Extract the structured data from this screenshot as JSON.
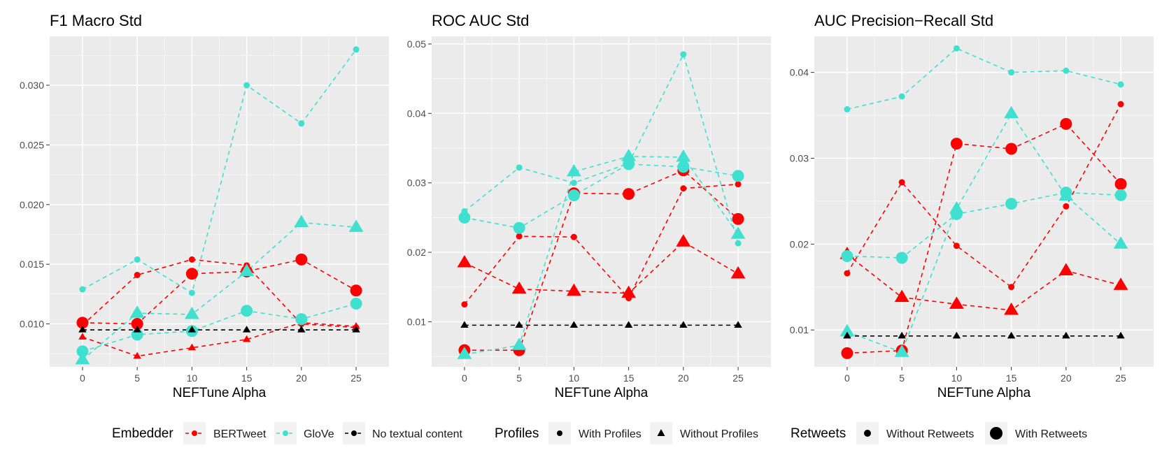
{
  "colors": {
    "panel_bg": "#EBEBEB",
    "grid": "#FFFFFF",
    "axis_text": "#4D4D4D",
    "text": "#000000",
    "bertweet": "#FF0000",
    "glove": "#40E0D0",
    "no_text": "#000000",
    "legend_key_bg": "#F2F2F2"
  },
  "chart_data": [
    {
      "type": "line",
      "title": "F1 Macro Std",
      "xlabel": "NEFTune Alpha",
      "ylabel": "",
      "x": [
        0,
        5,
        10,
        15,
        20,
        25
      ],
      "xlim": [
        -3,
        28
      ],
      "ylim": [
        0.0064,
        0.0341
      ],
      "yticks": [
        0.01,
        0.015,
        0.02,
        0.025,
        0.03
      ],
      "ytick_labels": [
        "0.010",
        "0.015",
        "0.020",
        "0.025",
        "0.030"
      ],
      "series": [
        {
          "name": "BERTweet, With Profiles, Without Retweets",
          "embedder": "BERTweet",
          "profiles": "With Profiles",
          "retweets": "Without Retweets",
          "values": [
            0.0099,
            0.0141,
            0.0154,
            0.0149,
            0.01,
            0.0097
          ]
        },
        {
          "name": "BERTweet, With Profiles, With Retweets",
          "embedder": "BERTweet",
          "profiles": "With Profiles",
          "retweets": "With Retweets",
          "values": [
            0.0101,
            0.01,
            0.0142,
            0.0144,
            0.0154,
            0.0128
          ]
        },
        {
          "name": "BERTweet, Without Profiles, Without Retweets",
          "embedder": "BERTweet",
          "profiles": "Without Profiles",
          "retweets": "Without Retweets",
          "values": [
            0.0089,
            0.0073,
            0.008,
            0.0087,
            0.0101,
            0.0098
          ]
        },
        {
          "name": "GloVe, With Profiles, Without Retweets",
          "embedder": "GloVe",
          "profiles": "With Profiles",
          "retweets": "Without Retweets",
          "values": [
            0.0129,
            0.0154,
            0.0126,
            0.03,
            0.0268,
            0.033
          ]
        },
        {
          "name": "GloVe, With Profiles, With Retweets",
          "embedder": "GloVe",
          "profiles": "With Profiles",
          "retweets": "With Retweets",
          "values": [
            0.0077,
            0.0091,
            0.0094,
            0.0111,
            0.0104,
            0.0117
          ]
        },
        {
          "name": "GloVe, Without Profiles, With Retweets",
          "embedder": "GloVe",
          "profiles": "Without Profiles",
          "retweets": "With Retweets",
          "values": [
            0.007,
            0.0109,
            0.0108,
            0.0144,
            0.0185,
            0.0181
          ]
        },
        {
          "name": "No textual content, Without Profiles, Without Retweets",
          "embedder": "No textual content",
          "profiles": "Without Profiles",
          "retweets": "Without Retweets",
          "values": [
            0.0095,
            0.0095,
            0.0095,
            0.0095,
            0.0095,
            0.0095
          ]
        }
      ]
    },
    {
      "type": "line",
      "title": "ROC AUC Std",
      "xlabel": "NEFTune Alpha",
      "ylabel": "",
      "x": [
        0,
        5,
        10,
        15,
        20,
        25
      ],
      "xlim": [
        -3,
        28
      ],
      "ylim": [
        0.0035,
        0.0511
      ],
      "yticks": [
        0.01,
        0.02,
        0.03,
        0.04,
        0.05
      ],
      "ytick_labels": [
        "0.01",
        "0.02",
        "0.03",
        "0.04",
        "0.05"
      ],
      "series": [
        {
          "name": "BERTweet, With Profiles, Without Retweets",
          "embedder": "BERTweet",
          "profiles": "With Profiles",
          "retweets": "Without Retweets",
          "values": [
            0.0125,
            0.0223,
            0.0222,
            0.0134,
            0.0292,
            0.0298
          ]
        },
        {
          "name": "BERTweet, With Profiles, With Retweets",
          "embedder": "BERTweet",
          "profiles": "With Profiles",
          "retweets": "With Retweets",
          "values": [
            0.0059,
            0.0059,
            0.0285,
            0.0284,
            0.0318,
            0.0248
          ]
        },
        {
          "name": "BERTweet, Without Profiles, With Retweets",
          "embedder": "BERTweet",
          "profiles": "Without Profiles",
          "retweets": "With Retweets",
          "values": [
            0.0185,
            0.0147,
            0.0144,
            0.0141,
            0.0215,
            0.0169
          ]
        },
        {
          "name": "GloVe, With Profiles, Without Retweets",
          "embedder": "GloVe",
          "profiles": "With Profiles",
          "retweets": "Without Retweets",
          "values": [
            0.0259,
            0.0322,
            0.03,
            0.0328,
            0.0485,
            0.0213
          ]
        },
        {
          "name": "GloVe, With Profiles, With Retweets",
          "embedder": "GloVe",
          "profiles": "With Profiles",
          "retweets": "With Retweets",
          "values": [
            0.025,
            0.0235,
            0.0282,
            0.0327,
            0.0323,
            0.031
          ]
        },
        {
          "name": "GloVe, Without Profiles, With Retweets",
          "embedder": "GloVe",
          "profiles": "Without Profiles",
          "retweets": "With Retweets",
          "values": [
            0.0053,
            0.0066,
            0.0316,
            0.0338,
            0.0337,
            0.0226
          ]
        },
        {
          "name": "No textual content, Without Profiles, Without Retweets",
          "embedder": "No textual content",
          "profiles": "Without Profiles",
          "retweets": "Without Retweets",
          "values": [
            0.0095,
            0.0095,
            0.0095,
            0.0095,
            0.0095,
            0.0095
          ]
        }
      ]
    },
    {
      "type": "line",
      "title": "AUC Precision−Recall Std",
      "xlabel": "NEFTune Alpha",
      "ylabel": "",
      "x": [
        0,
        5,
        10,
        15,
        20,
        25
      ],
      "xlim": [
        -3,
        28
      ],
      "ylim": [
        0.0057,
        0.0442
      ],
      "yticks": [
        0.01,
        0.02,
        0.03,
        0.04
      ],
      "ytick_labels": [
        "0.01",
        "0.02",
        "0.03",
        "0.04"
      ],
      "series": [
        {
          "name": "BERTweet, With Profiles, Without Retweets",
          "embedder": "BERTweet",
          "profiles": "With Profiles",
          "retweets": "Without Retweets",
          "values": [
            0.0166,
            0.0272,
            0.0198,
            0.015,
            0.0244,
            0.0363
          ]
        },
        {
          "name": "BERTweet, With Profiles, With Retweets",
          "embedder": "BERTweet",
          "profiles": "With Profiles",
          "retweets": "With Retweets",
          "values": [
            0.0073,
            0.0076,
            0.0317,
            0.0311,
            0.034,
            0.027
          ]
        },
        {
          "name": "BERTweet, Without Profiles, With Retweets",
          "embedder": "BERTweet",
          "profiles": "Without Profiles",
          "retweets": "With Retweets",
          "values": [
            0.0188,
            0.0138,
            0.013,
            0.0123,
            0.0169,
            0.0152
          ]
        },
        {
          "name": "GloVe, With Profiles, Without Retweets",
          "embedder": "GloVe",
          "profiles": "With Profiles",
          "retweets": "Without Retweets",
          "values": [
            0.0357,
            0.0372,
            0.0428,
            0.04,
            0.0402,
            0.0386
          ]
        },
        {
          "name": "GloVe, With Profiles, With Retweets",
          "embedder": "GloVe",
          "profiles": "With Profiles",
          "retweets": "With Retweets",
          "values": [
            0.0186,
            0.0184,
            0.0235,
            0.0247,
            0.026,
            0.0257
          ]
        },
        {
          "name": "GloVe, Without Profiles, With Retweets",
          "embedder": "GloVe",
          "profiles": "Without Profiles",
          "retweets": "With Retweets",
          "values": [
            0.0098,
            0.0074,
            0.0241,
            0.0352,
            0.0256,
            0.02
          ]
        },
        {
          "name": "No textual content, Without Profiles, Without Retweets",
          "embedder": "No textual content",
          "profiles": "Without Profiles",
          "retweets": "Without Retweets",
          "values": [
            0.0093,
            0.0093,
            0.0093,
            0.0093,
            0.0093,
            0.0093
          ]
        }
      ]
    }
  ],
  "legend": {
    "position": "bottom",
    "embedder": {
      "title": "Embedder",
      "items": [
        {
          "label": "BERTweet",
          "color": "#FF0000"
        },
        {
          "label": "GloVe",
          "color": "#40E0D0"
        },
        {
          "label": "No textual content",
          "color": "#000000"
        }
      ]
    },
    "profiles": {
      "title": "Profiles",
      "items": [
        {
          "label": "With Profiles",
          "shape": "circle"
        },
        {
          "label": "Without Profiles",
          "shape": "triangle"
        }
      ]
    },
    "retweets": {
      "title": "Retweets",
      "items": [
        {
          "label": "Without Retweets",
          "size": "small"
        },
        {
          "label": "With Retweets",
          "size": "large"
        }
      ]
    }
  }
}
